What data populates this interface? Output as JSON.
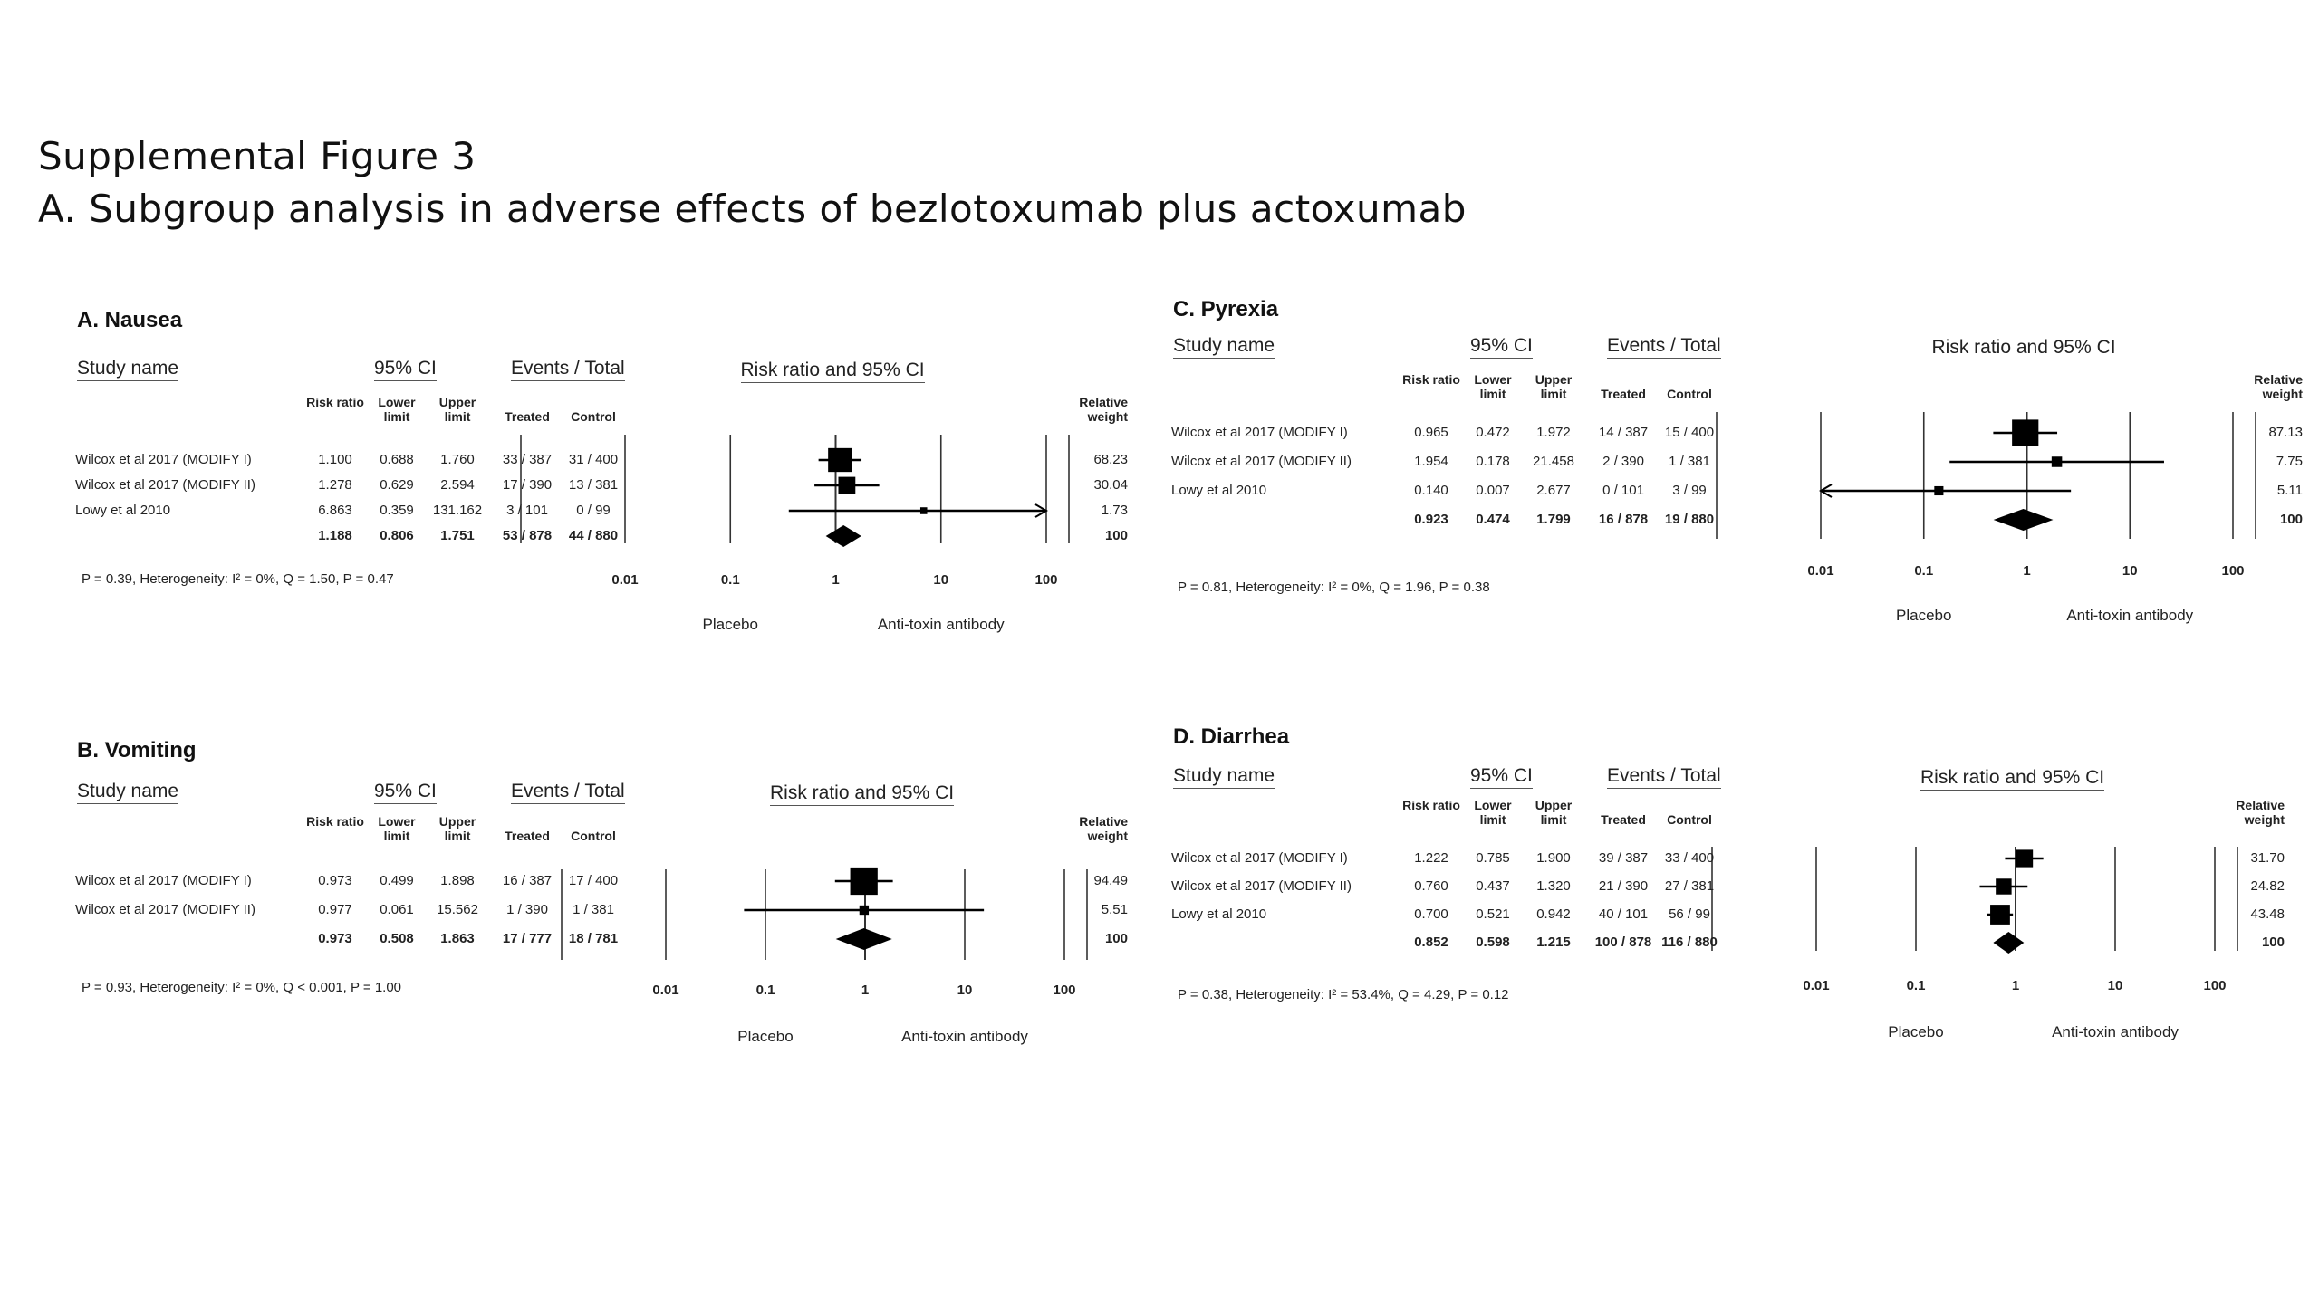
{
  "figure": {
    "title_line1": "Supplemental Figure 3",
    "title_line2": "A. Subgroup analysis in adverse effects of bezlotoxumab plus actoxumab"
  },
  "labels": {
    "study_name": "Study name",
    "ci": "95% CI",
    "events_total": "Events / Total",
    "plot_title": "Risk ratio and 95% CI",
    "risk_ratio": "Risk ratio",
    "lower_limit": "Lower limit",
    "upper_limit": "Upper limit",
    "treated": "Treated",
    "control": "Control",
    "relative_weight": "Relative weight",
    "placebo": "Placebo",
    "antitoxin": "Anti-toxin antibody",
    "ticks": [
      "0.01",
      "0.1",
      "1",
      "10",
      "100"
    ]
  },
  "panels": [
    {
      "title": "A. Nausea",
      "rows": [
        {
          "study": "Wilcox et al 2017 (MODIFY I)",
          "rr": "1.100",
          "lower": "0.688",
          "upper": "1.760",
          "treated": "33 / 387",
          "control": "31 / 400",
          "weight": "68.23"
        },
        {
          "study": "Wilcox et al 2017 (MODIFY II)",
          "rr": "1.278",
          "lower": "0.629",
          "upper": "2.594",
          "treated": "17 / 390",
          "control": "13 / 381",
          "weight": "30.04"
        },
        {
          "study": "Lowy et al 2010",
          "rr": "6.863",
          "lower": "0.359",
          "upper": "131.162",
          "treated": "3 / 101",
          "control": "0 / 99",
          "weight": "1.73"
        }
      ],
      "total": {
        "rr": "1.188",
        "lower": "0.806",
        "upper": "1.751",
        "treated": "53 / 878",
        "control": "44 / 880",
        "weight": "100"
      },
      "stats": "P = 0.39, Heterogeneity: I² = 0%, Q = 1.50, P = 0.47"
    },
    {
      "title": "B. Vomiting",
      "rows": [
        {
          "study": "Wilcox et al 2017 (MODIFY I)",
          "rr": "0.973",
          "lower": "0.499",
          "upper": "1.898",
          "treated": "16 / 387",
          "control": "17 / 400",
          "weight": "94.49"
        },
        {
          "study": "Wilcox et al 2017 (MODIFY II)",
          "rr": "0.977",
          "lower": "0.061",
          "upper": "15.562",
          "treated": "1 / 390",
          "control": "1 / 381",
          "weight": "5.51"
        }
      ],
      "total": {
        "rr": "0.973",
        "lower": "0.508",
        "upper": "1.863",
        "treated": "17 / 777",
        "control": "18 / 781",
        "weight": "100"
      },
      "stats": "P = 0.93, Heterogeneity: I² = 0%, Q < 0.001, P = 1.00"
    },
    {
      "title": "C. Pyrexia",
      "rows": [
        {
          "study": "Wilcox et al 2017 (MODIFY I)",
          "rr": "0.965",
          "lower": "0.472",
          "upper": "1.972",
          "treated": "14 / 387",
          "control": "15 / 400",
          "weight": "87.13"
        },
        {
          "study": "Wilcox et al 2017 (MODIFY II)",
          "rr": "1.954",
          "lower": "0.178",
          "upper": "21.458",
          "treated": "2 / 390",
          "control": "1 / 381",
          "weight": "7.75"
        },
        {
          "study": "Lowy et al 2010",
          "rr": "0.140",
          "lower": "0.007",
          "upper": "2.677",
          "treated": "0 / 101",
          "control": "3 / 99",
          "weight": "5.11"
        }
      ],
      "total": {
        "rr": "0.923",
        "lower": "0.474",
        "upper": "1.799",
        "treated": "16 / 878",
        "control": "19 / 880",
        "weight": "100"
      },
      "stats": "P = 0.81, Heterogeneity: I² = 0%, Q = 1.96, P = 0.38"
    },
    {
      "title": "D. Diarrhea",
      "rows": [
        {
          "study": "Wilcox et al 2017 (MODIFY I)",
          "rr": "1.222",
          "lower": "0.785",
          "upper": "1.900",
          "treated": "39 / 387",
          "control": "33 / 400",
          "weight": "31.70"
        },
        {
          "study": "Wilcox et al 2017 (MODIFY II)",
          "rr": "0.760",
          "lower": "0.437",
          "upper": "1.320",
          "treated": "21 / 390",
          "control": "27 / 381",
          "weight": "24.82"
        },
        {
          "study": "Lowy et al 2010",
          "rr": "0.700",
          "lower": "0.521",
          "upper": "0.942",
          "treated": "40 / 101",
          "control": "56 / 99",
          "weight": "43.48"
        }
      ],
      "total": {
        "rr": "0.852",
        "lower": "0.598",
        "upper": "1.215",
        "treated": "100 / 878",
        "control": "116 / 880",
        "weight": "100"
      },
      "stats": "P = 0.38, Heterogeneity: I² = 53.4%, Q = 4.29, P = 0.12"
    }
  ],
  "chart_data": [
    {
      "type": "forest",
      "title": "A. Nausea",
      "x_scale": "log",
      "xlim": [
        0.01,
        100
      ],
      "series": [
        {
          "study": "Wilcox et al 2017 (MODIFY I)",
          "rr": 1.1,
          "lower": 0.688,
          "upper": 1.76,
          "weight": 68.23
        },
        {
          "study": "Wilcox et al 2017 (MODIFY II)",
          "rr": 1.278,
          "lower": 0.629,
          "upper": 2.594,
          "weight": 30.04
        },
        {
          "study": "Lowy et al 2010",
          "rr": 6.863,
          "lower": 0.359,
          "upper": 131.162,
          "weight": 1.73
        }
      ],
      "pooled": {
        "rr": 1.188,
        "lower": 0.806,
        "upper": 1.751
      }
    },
    {
      "type": "forest",
      "title": "B. Vomiting",
      "x_scale": "log",
      "xlim": [
        0.01,
        100
      ],
      "series": [
        {
          "study": "Wilcox et al 2017 (MODIFY I)",
          "rr": 0.973,
          "lower": 0.499,
          "upper": 1.898,
          "weight": 94.49
        },
        {
          "study": "Wilcox et al 2017 (MODIFY II)",
          "rr": 0.977,
          "lower": 0.061,
          "upper": 15.562,
          "weight": 5.51
        }
      ],
      "pooled": {
        "rr": 0.973,
        "lower": 0.508,
        "upper": 1.863
      }
    },
    {
      "type": "forest",
      "title": "C. Pyrexia",
      "x_scale": "log",
      "xlim": [
        0.01,
        100
      ],
      "series": [
        {
          "study": "Wilcox et al 2017 (MODIFY I)",
          "rr": 0.965,
          "lower": 0.472,
          "upper": 1.972,
          "weight": 87.13
        },
        {
          "study": "Wilcox et al 2017 (MODIFY II)",
          "rr": 1.954,
          "lower": 0.178,
          "upper": 21.458,
          "weight": 7.75
        },
        {
          "study": "Lowy et al 2010",
          "rr": 0.14,
          "lower": 0.007,
          "upper": 2.677,
          "weight": 5.11
        }
      ],
      "pooled": {
        "rr": 0.923,
        "lower": 0.474,
        "upper": 1.799
      }
    },
    {
      "type": "forest",
      "title": "D. Diarrhea",
      "x_scale": "log",
      "xlim": [
        0.01,
        100
      ],
      "series": [
        {
          "study": "Wilcox et al 2017 (MODIFY I)",
          "rr": 1.222,
          "lower": 0.785,
          "upper": 1.9,
          "weight": 31.7
        },
        {
          "study": "Wilcox et al 2017 (MODIFY II)",
          "rr": 0.76,
          "lower": 0.437,
          "upper": 1.32,
          "weight": 24.82
        },
        {
          "study": "Lowy et al 2010",
          "rr": 0.7,
          "lower": 0.521,
          "upper": 0.942,
          "weight": 43.48
        }
      ],
      "pooled": {
        "rr": 0.852,
        "lower": 0.598,
        "upper": 1.215
      }
    }
  ]
}
